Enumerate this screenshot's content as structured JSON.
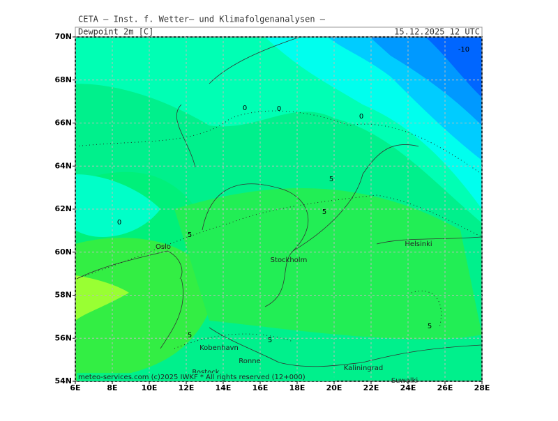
{
  "header": {
    "title": "CETA — Inst. f. Wetter— und Klimafolgenanalysen —",
    "parameter": "Dewpoint 2m [C]",
    "valid_time": "15.12.2025 12 UTC"
  },
  "map": {
    "lat_ticks": [
      {
        "value": 54,
        "label": "54N"
      },
      {
        "value": 56,
        "label": "56N"
      },
      {
        "value": 58,
        "label": "58N"
      },
      {
        "value": 60,
        "label": "60N"
      },
      {
        "value": 62,
        "label": "62N"
      },
      {
        "value": 64,
        "label": "64N"
      },
      {
        "value": 66,
        "label": "66N"
      },
      {
        "value": 68,
        "label": "68N"
      },
      {
        "value": 70,
        "label": "70N"
      }
    ],
    "lon_ticks": [
      {
        "value": 6,
        "label": "6E"
      },
      {
        "value": 8,
        "label": "8E"
      },
      {
        "value": 10,
        "label": "10E"
      },
      {
        "value": 12,
        "label": "12E"
      },
      {
        "value": 14,
        "label": "14E"
      },
      {
        "value": 16,
        "label": "16E"
      },
      {
        "value": 18,
        "label": "18E"
      },
      {
        "value": 20,
        "label": "20E"
      },
      {
        "value": 22,
        "label": "22E"
      },
      {
        "value": 24,
        "label": "24E"
      },
      {
        "value": 26,
        "label": "26E"
      },
      {
        "value": 28,
        "label": "28E"
      }
    ],
    "contour_labels": [
      0,
      0,
      0,
      0,
      5,
      5,
      5,
      5,
      5,
      5,
      -10
    ],
    "cities": [
      "Oslo",
      "Stockholm",
      "Helsinki",
      "Kobenhavn",
      "Ronne",
      "Kaliningrad",
      "Rostock",
      "Suwalki"
    ]
  },
  "footer": "meteo-services.com (c)2025 IWKF * All rights reserved (12+000)"
}
